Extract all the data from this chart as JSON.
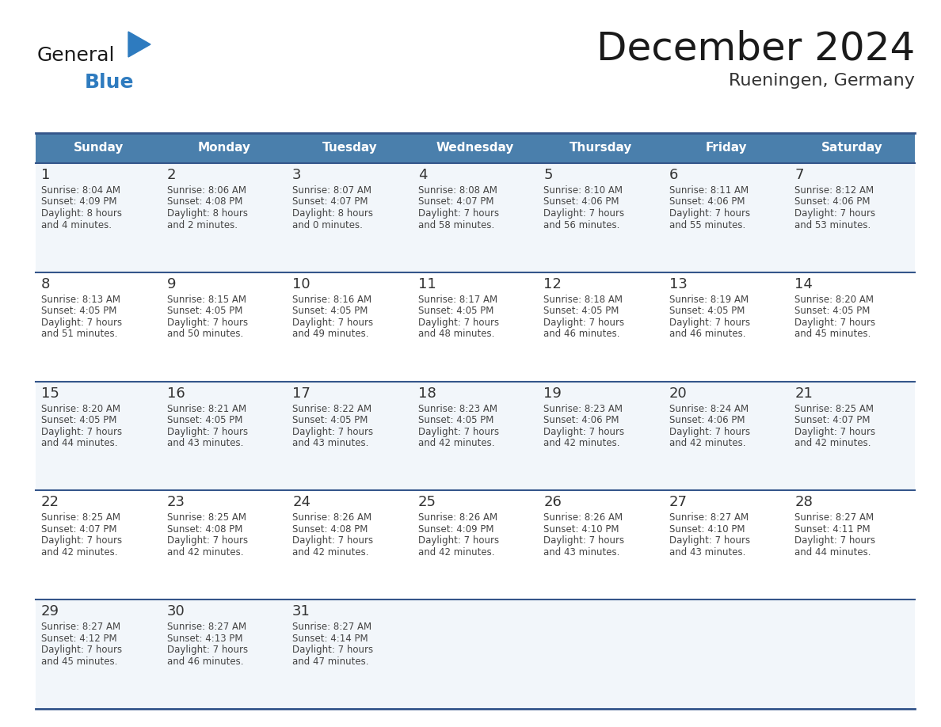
{
  "title": "December 2024",
  "subtitle": "Rueningen, Germany",
  "days_of_week": [
    "Sunday",
    "Monday",
    "Tuesday",
    "Wednesday",
    "Thursday",
    "Friday",
    "Saturday"
  ],
  "header_bg": "#4a7fac",
  "header_text": "#ffffff",
  "cell_bg_odd": "#f2f6fa",
  "cell_bg_even": "#ffffff",
  "week_line_color": "#34558a",
  "outer_line_color": "#34558a",
  "day_num_color": "#333333",
  "day_text_color": "#444444",
  "title_color": "#1a1a1a",
  "subtitle_color": "#333333",
  "logo_general_color": "#1a1a1a",
  "logo_blue_color": "#2e7bbf",
  "weeks": [
    [
      {
        "day": "1",
        "sunrise": "8:04 AM",
        "sunset": "4:09 PM",
        "daylight1": "8 hours",
        "daylight2": "and 4 minutes."
      },
      {
        "day": "2",
        "sunrise": "8:06 AM",
        "sunset": "4:08 PM",
        "daylight1": "8 hours",
        "daylight2": "and 2 minutes."
      },
      {
        "day": "3",
        "sunrise": "8:07 AM",
        "sunset": "4:07 PM",
        "daylight1": "8 hours",
        "daylight2": "and 0 minutes."
      },
      {
        "day": "4",
        "sunrise": "8:08 AM",
        "sunset": "4:07 PM",
        "daylight1": "7 hours",
        "daylight2": "and 58 minutes."
      },
      {
        "day": "5",
        "sunrise": "8:10 AM",
        "sunset": "4:06 PM",
        "daylight1": "7 hours",
        "daylight2": "and 56 minutes."
      },
      {
        "day": "6",
        "sunrise": "8:11 AM",
        "sunset": "4:06 PM",
        "daylight1": "7 hours",
        "daylight2": "and 55 minutes."
      },
      {
        "day": "7",
        "sunrise": "8:12 AM",
        "sunset": "4:06 PM",
        "daylight1": "7 hours",
        "daylight2": "and 53 minutes."
      }
    ],
    [
      {
        "day": "8",
        "sunrise": "8:13 AM",
        "sunset": "4:05 PM",
        "daylight1": "7 hours",
        "daylight2": "and 51 minutes."
      },
      {
        "day": "9",
        "sunrise": "8:15 AM",
        "sunset": "4:05 PM",
        "daylight1": "7 hours",
        "daylight2": "and 50 minutes."
      },
      {
        "day": "10",
        "sunrise": "8:16 AM",
        "sunset": "4:05 PM",
        "daylight1": "7 hours",
        "daylight2": "and 49 minutes."
      },
      {
        "day": "11",
        "sunrise": "8:17 AM",
        "sunset": "4:05 PM",
        "daylight1": "7 hours",
        "daylight2": "and 48 minutes."
      },
      {
        "day": "12",
        "sunrise": "8:18 AM",
        "sunset": "4:05 PM",
        "daylight1": "7 hours",
        "daylight2": "and 46 minutes."
      },
      {
        "day": "13",
        "sunrise": "8:19 AM",
        "sunset": "4:05 PM",
        "daylight1": "7 hours",
        "daylight2": "and 46 minutes."
      },
      {
        "day": "14",
        "sunrise": "8:20 AM",
        "sunset": "4:05 PM",
        "daylight1": "7 hours",
        "daylight2": "and 45 minutes."
      }
    ],
    [
      {
        "day": "15",
        "sunrise": "8:20 AM",
        "sunset": "4:05 PM",
        "daylight1": "7 hours",
        "daylight2": "and 44 minutes."
      },
      {
        "day": "16",
        "sunrise": "8:21 AM",
        "sunset": "4:05 PM",
        "daylight1": "7 hours",
        "daylight2": "and 43 minutes."
      },
      {
        "day": "17",
        "sunrise": "8:22 AM",
        "sunset": "4:05 PM",
        "daylight1": "7 hours",
        "daylight2": "and 43 minutes."
      },
      {
        "day": "18",
        "sunrise": "8:23 AM",
        "sunset": "4:05 PM",
        "daylight1": "7 hours",
        "daylight2": "and 42 minutes."
      },
      {
        "day": "19",
        "sunrise": "8:23 AM",
        "sunset": "4:06 PM",
        "daylight1": "7 hours",
        "daylight2": "and 42 minutes."
      },
      {
        "day": "20",
        "sunrise": "8:24 AM",
        "sunset": "4:06 PM",
        "daylight1": "7 hours",
        "daylight2": "and 42 minutes."
      },
      {
        "day": "21",
        "sunrise": "8:25 AM",
        "sunset": "4:07 PM",
        "daylight1": "7 hours",
        "daylight2": "and 42 minutes."
      }
    ],
    [
      {
        "day": "22",
        "sunrise": "8:25 AM",
        "sunset": "4:07 PM",
        "daylight1": "7 hours",
        "daylight2": "and 42 minutes."
      },
      {
        "day": "23",
        "sunrise": "8:25 AM",
        "sunset": "4:08 PM",
        "daylight1": "7 hours",
        "daylight2": "and 42 minutes."
      },
      {
        "day": "24",
        "sunrise": "8:26 AM",
        "sunset": "4:08 PM",
        "daylight1": "7 hours",
        "daylight2": "and 42 minutes."
      },
      {
        "day": "25",
        "sunrise": "8:26 AM",
        "sunset": "4:09 PM",
        "daylight1": "7 hours",
        "daylight2": "and 42 minutes."
      },
      {
        "day": "26",
        "sunrise": "8:26 AM",
        "sunset": "4:10 PM",
        "daylight1": "7 hours",
        "daylight2": "and 43 minutes."
      },
      {
        "day": "27",
        "sunrise": "8:27 AM",
        "sunset": "4:10 PM",
        "daylight1": "7 hours",
        "daylight2": "and 43 minutes."
      },
      {
        "day": "28",
        "sunrise": "8:27 AM",
        "sunset": "4:11 PM",
        "daylight1": "7 hours",
        "daylight2": "and 44 minutes."
      }
    ],
    [
      {
        "day": "29",
        "sunrise": "8:27 AM",
        "sunset": "4:12 PM",
        "daylight1": "7 hours",
        "daylight2": "and 45 minutes."
      },
      {
        "day": "30",
        "sunrise": "8:27 AM",
        "sunset": "4:13 PM",
        "daylight1": "7 hours",
        "daylight2": "and 46 minutes."
      },
      {
        "day": "31",
        "sunrise": "8:27 AM",
        "sunset": "4:14 PM",
        "daylight1": "7 hours",
        "daylight2": "and 47 minutes."
      },
      null,
      null,
      null,
      null
    ]
  ]
}
